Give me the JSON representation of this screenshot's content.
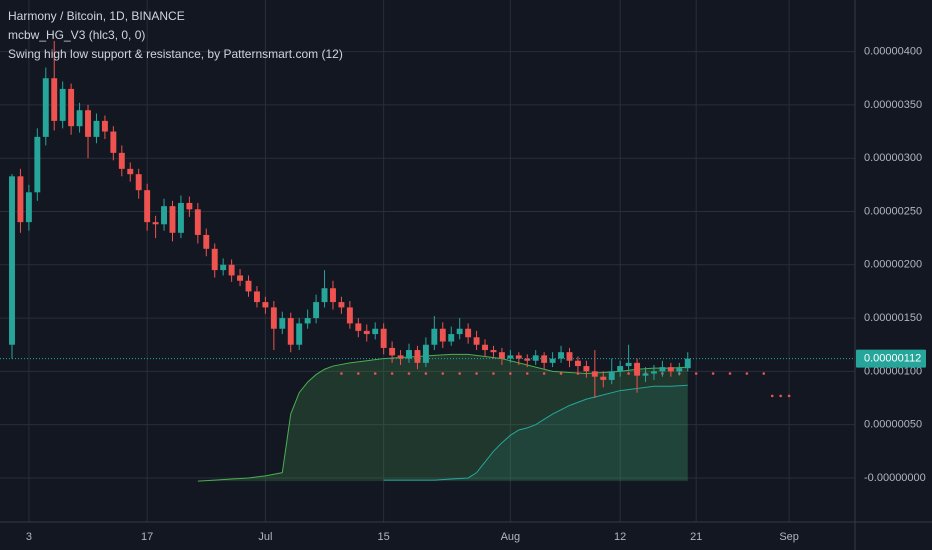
{
  "chart_data": {
    "type": "candlestick",
    "title": "Harmony / Bitcoin, 1D, BINANCE",
    "indicators": [
      "mcbw_HG_V3 (hlc3, 0, 0)",
      "Swing high low support & resistance, by Patternsmart.com (12)"
    ],
    "up_color": "#26a69a",
    "down_color": "#ef5350",
    "open": [
      1.25e-06,
      2.83e-06,
      2.4e-06,
      2.68e-06,
      3.2e-06,
      3.75e-06,
      3.35e-06,
      3.65e-06,
      3.3e-06,
      3.45e-06,
      3.2e-06,
      3.35e-06,
      3.25e-06,
      3.05e-06,
      2.9e-06,
      2.85e-06,
      2.7e-06,
      2.4e-06,
      2.38e-06,
      2.55e-06,
      2.3e-06,
      2.58e-06,
      2.52e-06,
      2.28e-06,
      2.15e-06,
      1.95e-06,
      2e-06,
      1.9e-06,
      1.85e-06,
      1.75e-06,
      1.65e-06,
      1.6e-06,
      1.4e-06,
      1.5e-06,
      1.25e-06,
      1.45e-06,
      1.5e-06,
      1.65e-06,
      1.78e-06,
      1.65e-06,
      1.6e-06,
      1.45e-06,
      1.38e-06,
      1.35e-06,
      1.4e-06,
      1.22e-06,
      1.15e-06,
      1.12e-06,
      1.2e-06,
      1.08e-06,
      1.25e-06,
      1.4e-06,
      1.28e-06,
      1.35e-06,
      1.4e-06,
      1.32e-06,
      1.25e-06,
      1.2e-06,
      1.18e-06,
      1.12e-06,
      1.15e-06,
      1.12e-06,
      1.1e-06,
      1.15e-06,
      1.08e-06,
      1.12e-06,
      1.18e-06,
      1.1e-06,
      1.05e-06,
      1e-06,
      9.5e-07,
      9.2e-07,
      1e-06,
      1.05e-06,
      1.08e-06,
      9.6e-07,
      9.8e-07,
      1e-06,
      1.04e-06,
      1e-06,
      1.03e-06
    ],
    "high": [
      2.85e-06,
      2.9e-06,
      2.75e-06,
      3.28e-06,
      3.85e-06,
      4.1e-06,
      3.72e-06,
      3.7e-06,
      3.52e-06,
      3.5e-06,
      3.42e-06,
      3.4e-06,
      3.3e-06,
      3.12e-06,
      2.96e-06,
      2.9e-06,
      2.76e-06,
      2.46e-06,
      2.62e-06,
      2.6e-06,
      2.65e-06,
      2.64e-06,
      2.58e-06,
      2.34e-06,
      2.2e-06,
      2.06e-06,
      2.05e-06,
      1.96e-06,
      1.9e-06,
      1.8e-06,
      1.7e-06,
      1.66e-06,
      1.56e-06,
      1.55e-06,
      1.5e-06,
      1.58e-06,
      1.72e-06,
      1.95e-06,
      1.85e-06,
      1.7e-06,
      1.66e-06,
      1.5e-06,
      1.44e-06,
      1.46e-06,
      1.45e-06,
      1.28e-06,
      1.2e-06,
      1.26e-06,
      1.24e-06,
      1.32e-06,
      1.52e-06,
      1.46e-06,
      1.42e-06,
      1.5e-06,
      1.45e-06,
      1.38e-06,
      1.3e-06,
      1.24e-06,
      1.22e-06,
      1.2e-06,
      1.18e-06,
      1.16e-06,
      1.2e-06,
      1.18e-06,
      1.18e-06,
      1.24e-06,
      1.22e-06,
      1.14e-06,
      1.1e-06,
      1.2e-06,
      1e-06,
      1.12e-06,
      1.1e-06,
      1.25e-06,
      1.12e-06,
      1.04e-06,
      1.06e-06,
      1.1e-06,
      1.08e-06,
      1.08e-06,
      1.18e-06
    ],
    "low": [
      1.12e-06,
      2.3e-06,
      2.32e-06,
      2.6e-06,
      3.12e-06,
      3.26e-06,
      3.28e-06,
      3.22e-06,
      3.24e-06,
      3e-06,
      3.14e-06,
      3.18e-06,
      2.98e-06,
      2.83e-06,
      2.78e-06,
      2.62e-06,
      2.32e-06,
      2.25e-06,
      2.32e-06,
      2.22e-06,
      2.25e-06,
      2.45e-06,
      2.2e-06,
      2.08e-06,
      1.88e-06,
      1.9e-06,
      1.84e-06,
      1.8e-06,
      1.7e-06,
      1.6e-06,
      1.54e-06,
      1.2e-06,
      1.35e-06,
      1.18e-06,
      1.2e-06,
      1.4e-06,
      1.45e-06,
      1.6e-06,
      1.58e-06,
      1.54e-06,
      1.4e-06,
      1.32e-06,
      1.28e-06,
      1.3e-06,
      1.16e-06,
      1.08e-06,
      1.06e-06,
      1.08e-06,
      1.02e-06,
      1.04e-06,
      1.2e-06,
      1.22e-06,
      1.24e-06,
      1.3e-06,
      1.26e-06,
      1.2e-06,
      1.14e-06,
      1.12e-06,
      1.06e-06,
      1.08e-06,
      1.06e-06,
      1.04e-06,
      1.06e-06,
      1.02e-06,
      1.04e-06,
      1.08e-06,
      1.04e-06,
      9.9e-07,
      9.4e-07,
      7.5e-07,
      8.5e-07,
      8.8e-07,
      9.5e-07,
      1e-06,
      8e-07,
      9e-07,
      9.2e-07,
      9.5e-07,
      9.5e-07,
      9.6e-07,
      1e-06
    ],
    "close": [
      2.83e-06,
      2.4e-06,
      2.68e-06,
      3.2e-06,
      3.75e-06,
      3.35e-06,
      3.65e-06,
      3.3e-06,
      3.45e-06,
      3.2e-06,
      3.35e-06,
      3.25e-06,
      3.05e-06,
      2.9e-06,
      2.85e-06,
      2.7e-06,
      2.4e-06,
      2.38e-06,
      2.55e-06,
      2.3e-06,
      2.58e-06,
      2.52e-06,
      2.28e-06,
      2.15e-06,
      1.95e-06,
      2e-06,
      1.9e-06,
      1.85e-06,
      1.75e-06,
      1.65e-06,
      1.6e-06,
      1.4e-06,
      1.5e-06,
      1.25e-06,
      1.45e-06,
      1.5e-06,
      1.65e-06,
      1.78e-06,
      1.65e-06,
      1.6e-06,
      1.45e-06,
      1.38e-06,
      1.35e-06,
      1.4e-06,
      1.22e-06,
      1.15e-06,
      1.12e-06,
      1.2e-06,
      1.08e-06,
      1.25e-06,
      1.4e-06,
      1.28e-06,
      1.35e-06,
      1.4e-06,
      1.32e-06,
      1.25e-06,
      1.2e-06,
      1.18e-06,
      1.12e-06,
      1.15e-06,
      1.12e-06,
      1.1e-06,
      1.15e-06,
      1.08e-06,
      1.12e-06,
      1.18e-06,
      1.1e-06,
      1.05e-06,
      1e-06,
      9.5e-07,
      9.2e-07,
      1e-06,
      1.05e-06,
      1.08e-06,
      9.6e-07,
      9.8e-07,
      1e-06,
      1.04e-06,
      1e-06,
      1.03e-06,
      1.12e-06
    ],
    "overlays": [
      {
        "color": "#4caf50",
        "fill": "rgba(76,175,80,0.22)",
        "x": [
          22,
          24,
          26,
          28,
          30,
          32,
          33,
          34,
          35,
          36,
          37,
          38,
          40,
          42,
          44,
          46,
          48,
          50,
          52,
          54,
          56,
          58,
          60,
          62,
          64,
          66,
          68,
          70,
          72,
          74,
          76,
          78,
          80
        ],
        "values": [
          -3e-08,
          -2e-08,
          -1e-08,
          0,
          2e-08,
          5e-08,
          6e-07,
          8e-07,
          9e-07,
          9.7e-07,
          1.02e-06,
          1.05e-06,
          1.08e-06,
          1.1e-06,
          1.12e-06,
          1.13e-06,
          1.14e-06,
          1.15e-06,
          1.16e-06,
          1.16e-06,
          1.14e-06,
          1.12e-06,
          1.08e-06,
          1.04e-06,
          1e-06,
          9.9e-07,
          9.8e-07,
          9.9e-07,
          1e-06,
          1.02e-06,
          1.03e-06,
          1.03e-06,
          1.04e-06
        ]
      },
      {
        "color": "#26a69a",
        "fill": "rgba(38,166,154,0.12)",
        "x": [
          44,
          46,
          48,
          50,
          52,
          54,
          55,
          56,
          57,
          58,
          59,
          60,
          61,
          62,
          63,
          64,
          66,
          68,
          70,
          72,
          74,
          76,
          78,
          80
        ],
        "values": [
          -2e-08,
          -2e-08,
          -2e-08,
          -2e-08,
          -1e-08,
          0,
          5e-08,
          1.5e-07,
          2.5e-07,
          3.3e-07,
          4e-07,
          4.5e-07,
          4.7e-07,
          5e-07,
          5.5e-07,
          6e-07,
          6.8e-07,
          7.4e-07,
          7.8e-07,
          8.2e-07,
          8.4e-07,
          8.6e-07,
          8.6e-07,
          8.7e-07
        ]
      }
    ],
    "dots": {
      "color": "#ef5350",
      "x": [
        39,
        41,
        43,
        45,
        47,
        49,
        51,
        53,
        55,
        57,
        59,
        61,
        63,
        65,
        67,
        69,
        71,
        73,
        75,
        77,
        79,
        81,
        83,
        85,
        87,
        89,
        90,
        91,
        92
      ],
      "values": [
        9.8e-07,
        9.8e-07,
        9.8e-07,
        9.8e-07,
        9.8e-07,
        9.8e-07,
        9.8e-07,
        9.8e-07,
        9.8e-07,
        9.8e-07,
        9.8e-07,
        9.8e-07,
        9.8e-07,
        9.8e-07,
        9.8e-07,
        9.8e-07,
        9.8e-07,
        9.8e-07,
        9.8e-07,
        9.8e-07,
        9.8e-07,
        9.8e-07,
        9.8e-07,
        9.8e-07,
        9.8e-07,
        9.8e-07,
        7.7e-07,
        7.7e-07,
        7.7e-07
      ]
    },
    "last_price": {
      "value": 1.12e-06,
      "label": "0.00000112"
    },
    "xlim": [
      -1.42,
      99.8
    ],
    "xticks": [
      {
        "value": 2,
        "label": "3"
      },
      {
        "value": 16,
        "label": "17"
      },
      {
        "value": 30,
        "label": "Jul"
      },
      {
        "value": 44,
        "label": "15"
      },
      {
        "value": 59,
        "label": "Aug"
      },
      {
        "value": 72,
        "label": "12"
      },
      {
        "value": 81,
        "label": "21"
      },
      {
        "value": 92,
        "label": "Sep"
      }
    ],
    "ylim": [
      -4.13e-07,
      4.484e-06
    ],
    "yticks": [
      {
        "value": 0,
        "label": "-0.00000000"
      },
      {
        "value": 5e-07,
        "label": "0.00000050"
      },
      {
        "value": 1e-06,
        "label": "0.00000100"
      },
      {
        "value": 1.5e-06,
        "label": "0.00000150"
      },
      {
        "value": 2e-06,
        "label": "0.00000200"
      },
      {
        "value": 2.5e-06,
        "label": "0.00000250"
      },
      {
        "value": 3e-06,
        "label": "0.00000300"
      },
      {
        "value": 3.5e-06,
        "label": "0.00000350"
      },
      {
        "value": 4e-06,
        "label": "0.00000400"
      }
    ],
    "grid": true
  }
}
